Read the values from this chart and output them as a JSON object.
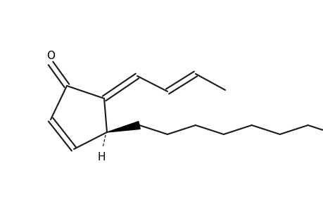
{
  "background": "#ffffff",
  "line_color": "#1a1a1a",
  "line_width": 1.5,
  "text_color": "#000000",
  "wedge_color": "#000000",
  "figsize": [
    4.6,
    3.0
  ],
  "dpi": 100
}
